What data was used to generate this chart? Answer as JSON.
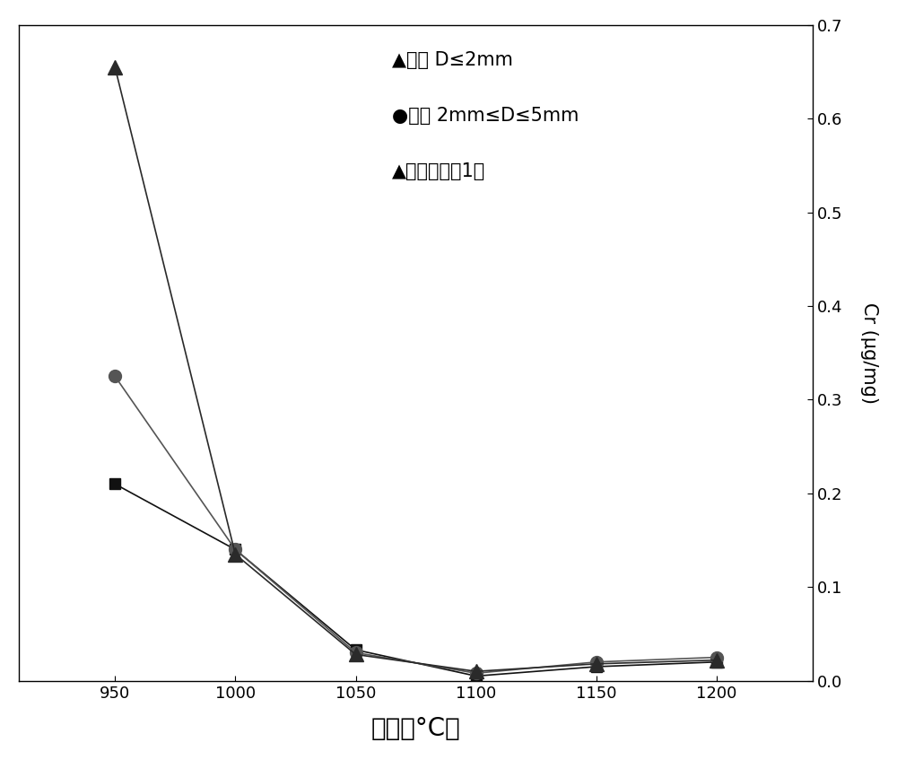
{
  "x": [
    950,
    1000,
    1050,
    1100,
    1150,
    1200
  ],
  "series1": {
    "marker": "^",
    "values": [
      0.655,
      0.135,
      0.028,
      0.01,
      0.018,
      0.022
    ],
    "color": "#2a2a2a"
  },
  "series2": {
    "marker": "o",
    "values": [
      0.325,
      0.14,
      0.03,
      0.008,
      0.02,
      0.025
    ],
    "color": "#555555"
  },
  "series3": {
    "marker": "s",
    "values": [
      0.21,
      0.14,
      0.033,
      0.005,
      0.015,
      0.02
    ],
    "color": "#111111"
  },
  "xlabel": "温度（°C）",
  "ylabel": "Cr (μg/mg)",
  "ylim": [
    0,
    0.7
  ],
  "yticks": [
    0.0,
    0.1,
    0.2,
    0.3,
    0.4,
    0.5,
    0.6,
    0.7
  ],
  "xticks": [
    950,
    1000,
    1050,
    1100,
    1150,
    1200
  ],
  "background_color": "#ffffff",
  "legend_line1": "▲代表 D≤2mm",
  "legend_line2": "●代表 2mm≤D≤5mm",
  "legend_line3": "▲代表完整頶1粒"
}
